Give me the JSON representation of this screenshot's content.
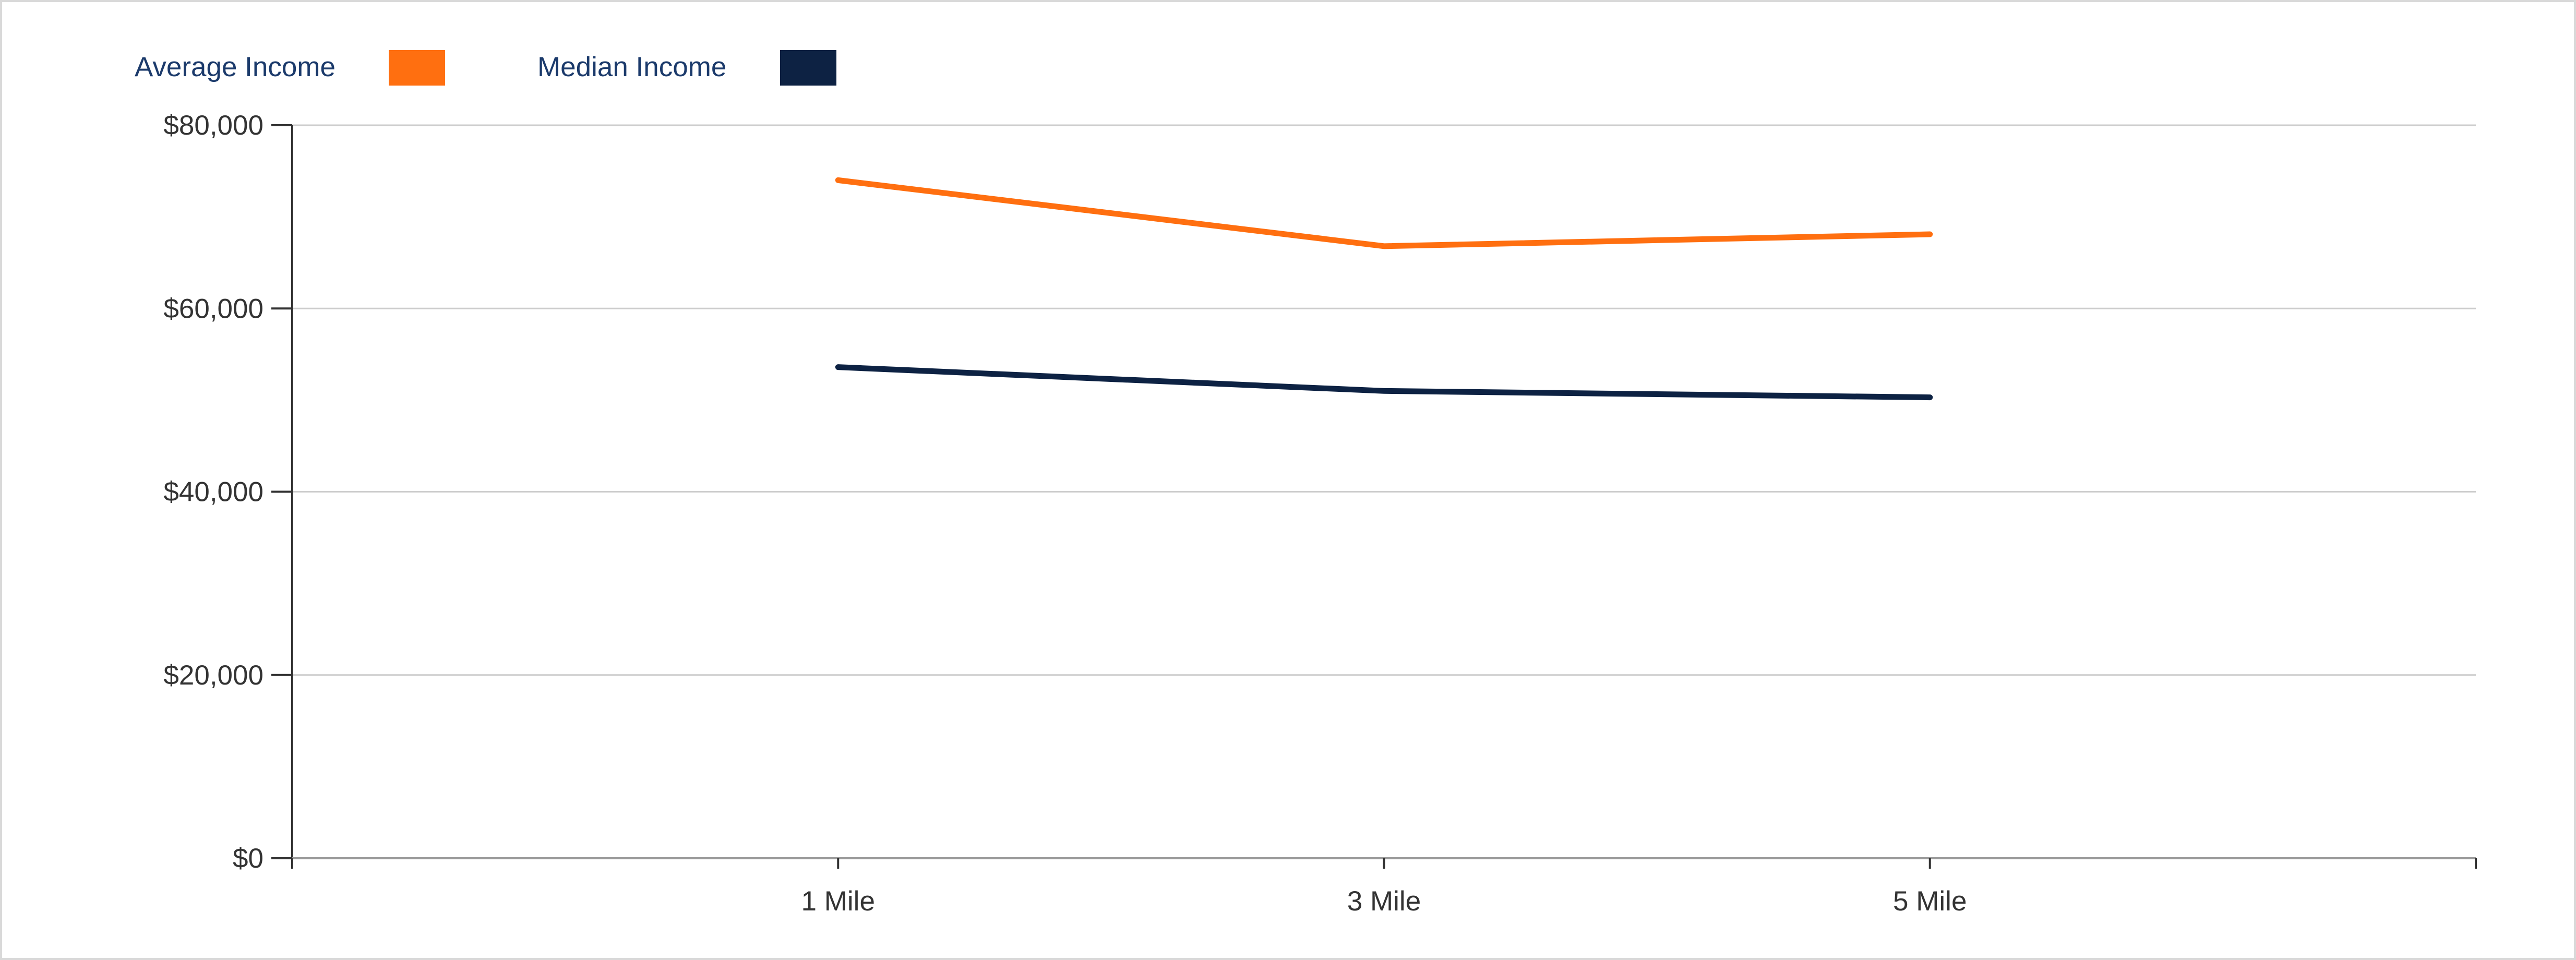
{
  "colors": {
    "background": "#ffffff",
    "frame": "#d9d9d9",
    "grid": "#cccccc",
    "axis": "#333333",
    "tick_text": "#333333",
    "legend_text": "#1b3a6b"
  },
  "chart_data": {
    "type": "line",
    "title": "",
    "xlabel": "",
    "ylabel": "",
    "categories": [
      "1 Mile",
      "3 Mile",
      "5 Mile"
    ],
    "series": [
      {
        "name": "Average Income",
        "color": "#ff6f10",
        "values": [
          74000,
          66800,
          68100
        ]
      },
      {
        "name": "Median Income",
        "color": "#0d2243",
        "values": [
          53600,
          51000,
          50300
        ]
      }
    ],
    "ylim": [
      0,
      80000
    ],
    "yticks": [
      0,
      20000,
      40000,
      60000,
      80000
    ],
    "ytick_labels": [
      "$0",
      "$20,000",
      "$40,000",
      "$60,000",
      "$80,000"
    ],
    "grid": true,
    "legend_position": "top-left"
  }
}
